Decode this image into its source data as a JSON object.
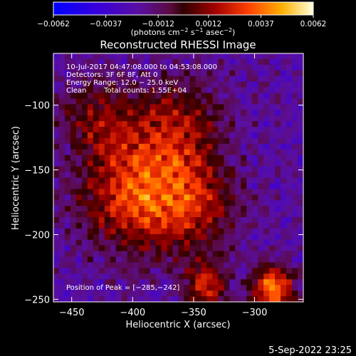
{
  "chart_data": {
    "type": "heatmap",
    "title": "Reconstructed RHESSI Image",
    "xlabel": "Heliocentric X (arcsec)",
    "ylabel": "Heliocentric Y (arcsec)",
    "xlim": [
      -465,
      -260
    ],
    "ylim": [
      -252,
      -60
    ],
    "x_ticks": [
      -450,
      -400,
      -350,
      -300
    ],
    "x_tick_labels": [
      "−450",
      "−400",
      "−350",
      "−300"
    ],
    "y_ticks": [
      -100,
      -150,
      -200,
      -250
    ],
    "y_tick_labels": [
      "−100",
      "−150",
      "−200",
      "−250"
    ],
    "colorbar": {
      "range": [
        -0.0062,
        0.0062
      ],
      "ticks": [
        -0.0062,
        -0.0037,
        -0.0012,
        0.0012,
        0.0037,
        0.0062
      ],
      "tick_labels": [
        "−0.0062",
        "−0.0037",
        "−0.0012",
        "0.0012",
        "0.0037",
        "0.0062"
      ],
      "units_text": "(photons cm",
      "units_exp1": "−2",
      "units_mid": " s",
      "units_exp2": "−1",
      "units_end": " asec",
      "units_exp3": "−2",
      "units_close": ")"
    },
    "annotations": {
      "time_range": "10-Jul-2017 04:47:08.000 to 04:53:08.000",
      "detectors": "Detectors: 3F 6F 8F, Att 0",
      "energy_range": "Energy Range: 12.0 − 25.0 keV",
      "method": "Clean",
      "total_counts": "Total counts: 1.55E+04",
      "peak": "Position of Peak = [−285,−242]"
    },
    "peak_position": [
      -285,
      -242
    ],
    "sources": [
      {
        "x": -285,
        "y": -242,
        "amplitude": 0.0062,
        "width": 12
      },
      {
        "x": -400,
        "y": -170,
        "amplitude": 0.0048,
        "width": 30
      },
      {
        "x": -365,
        "y": -120,
        "amplitude": 0.0035,
        "width": 28
      },
      {
        "x": -350,
        "y": -180,
        "amplitude": 0.0034,
        "width": 25
      },
      {
        "x": -340,
        "y": -240,
        "amplitude": 0.0045,
        "width": 12
      },
      {
        "x": -430,
        "y": -110,
        "amplitude": 0.0025,
        "width": 22
      }
    ]
  },
  "footer": {
    "date": "5-Sep-2022 23:25"
  }
}
